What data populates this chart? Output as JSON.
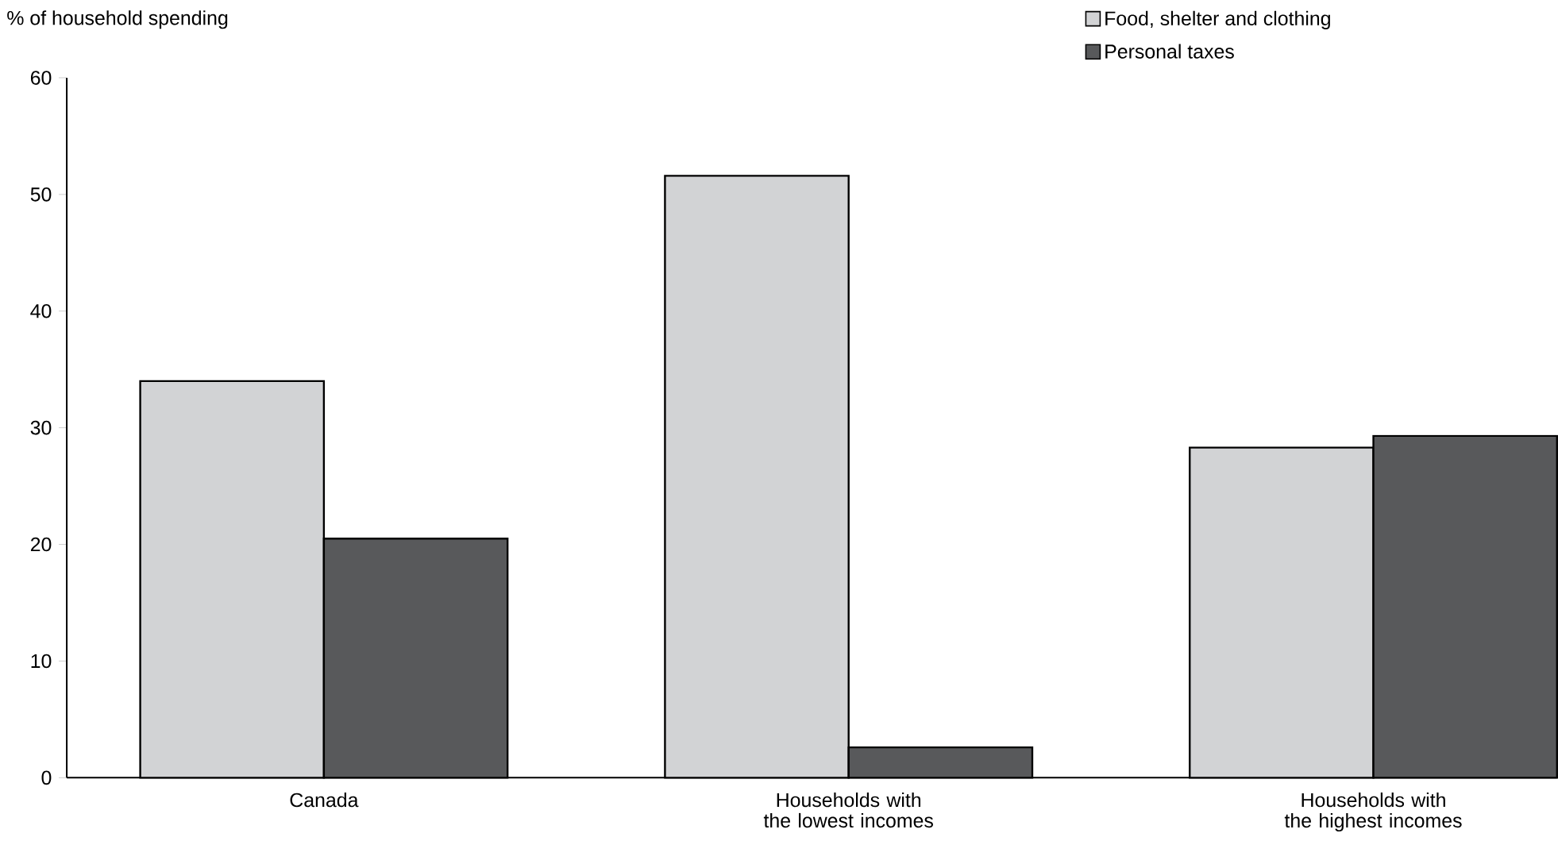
{
  "chart_data": {
    "type": "bar",
    "ylabel": "% of household spending",
    "categories": [
      "Canada",
      "Households with the lowest incomes",
      "Households with the highest incomes"
    ],
    "series": [
      {
        "name": "Food, shelter and clothing",
        "color": "#d2d3d5",
        "values": [
          34.0,
          51.6,
          28.3
        ]
      },
      {
        "name": "Personal taxes",
        "color": "#58595b",
        "values": [
          20.5,
          2.6,
          29.3
        ]
      }
    ],
    "ylim": [
      0,
      60
    ],
    "yticks": [
      0,
      10,
      20,
      30,
      40,
      50,
      60
    ],
    "legend": "top right"
  }
}
